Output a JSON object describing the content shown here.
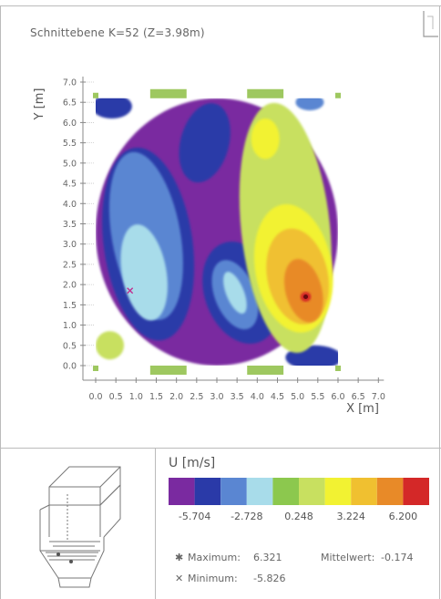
{
  "header": {
    "title": "Schnittebene K=52 (Z=3.98m)"
  },
  "chart_data": {
    "type": "heatmap",
    "ylabel": "Y [m]",
    "xlabel": "X [m]",
    "xlim": [
      0,
      7.0
    ],
    "ylim": [
      0,
      7.0
    ],
    "x_ticks": [
      "0.0",
      "0.5",
      "1.0",
      "1.5",
      "2.0",
      "2.5",
      "3.0",
      "3.5",
      "4.0",
      "4.5",
      "5.0",
      "5.5",
      "6.0",
      "6.5",
      "7.0"
    ],
    "y_ticks": [
      "0.0",
      "0.5",
      "1.0",
      "1.5",
      "2.0",
      "2.5",
      "3.0",
      "3.5",
      "4.0",
      "4.5",
      "5.0",
      "5.5",
      "6.0",
      "6.5",
      "7.0"
    ],
    "x_tick_values": [
      0,
      0.5,
      1.0,
      1.5,
      2.0,
      2.5,
      3.0,
      3.5,
      4.0,
      4.5,
      5.0,
      5.5,
      6.0,
      6.5,
      7.0
    ],
    "y_tick_values": [
      0,
      0.5,
      1.0,
      1.5,
      2.0,
      2.5,
      3.0,
      3.5,
      4.0,
      4.5,
      5.0,
      5.5,
      6.0,
      6.5,
      7.0
    ],
    "domain_x": [
      0,
      6.0
    ],
    "domain_y": [
      0,
      6.6
    ],
    "field": [
      {
        "level": 0,
        "blobs": [
          {
            "cx": 3.0,
            "cy": 3.3,
            "rx": 3.0,
            "ry": 3.3,
            "rot": 0
          }
        ]
      },
      {
        "level": 1,
        "blobs": [
          {
            "cx": 1.3,
            "cy": 3.0,
            "rx": 1.1,
            "ry": 2.4,
            "rot": -8
          },
          {
            "cx": 2.7,
            "cy": 5.5,
            "rx": 0.6,
            "ry": 1.0,
            "rot": 15
          },
          {
            "cx": 0.4,
            "cy": 6.4,
            "rx": 0.5,
            "ry": 0.3,
            "rot": 0
          },
          {
            "cx": 3.6,
            "cy": 1.8,
            "rx": 0.9,
            "ry": 1.3,
            "rot": -20
          },
          {
            "cx": 5.4,
            "cy": 0.2,
            "rx": 0.7,
            "ry": 0.3,
            "rot": 0
          }
        ]
      },
      {
        "level": 2,
        "blobs": [
          {
            "cx": 1.25,
            "cy": 3.2,
            "rx": 0.85,
            "ry": 2.1,
            "rot": -10
          },
          {
            "cx": 3.45,
            "cy": 1.75,
            "rx": 0.5,
            "ry": 0.9,
            "rot": -22
          },
          {
            "cx": 5.3,
            "cy": 6.5,
            "rx": 0.35,
            "ry": 0.2,
            "rot": 0
          }
        ]
      },
      {
        "level": 3,
        "blobs": [
          {
            "cx": 1.2,
            "cy": 2.3,
            "rx": 0.55,
            "ry": 1.2,
            "rot": -10
          },
          {
            "cx": 3.45,
            "cy": 1.8,
            "rx": 0.22,
            "ry": 0.55,
            "rot": -22
          }
        ]
      },
      {
        "level": 5,
        "blobs": [
          {
            "cx": 4.7,
            "cy": 3.4,
            "rx": 1.1,
            "ry": 3.1,
            "rot": -6
          },
          {
            "cx": 0.35,
            "cy": 0.5,
            "rx": 0.35,
            "ry": 0.35,
            "rot": 0
          }
        ]
      },
      {
        "level": 6,
        "blobs": [
          {
            "cx": 4.9,
            "cy": 2.4,
            "rx": 0.95,
            "ry": 1.6,
            "rot": -10
          },
          {
            "cx": 4.2,
            "cy": 5.6,
            "rx": 0.35,
            "ry": 0.5,
            "rot": 0
          }
        ]
      },
      {
        "level": 7,
        "blobs": [
          {
            "cx": 5.0,
            "cy": 2.2,
            "rx": 0.75,
            "ry": 1.2,
            "rot": -12
          }
        ]
      },
      {
        "level": 8,
        "blobs": [
          {
            "cx": 5.15,
            "cy": 1.85,
            "rx": 0.45,
            "ry": 0.8,
            "rot": -15
          }
        ]
      },
      {
        "level": 9,
        "blobs": [
          {
            "cx": 5.2,
            "cy": 1.7,
            "rx": 0.13,
            "ry": 0.12,
            "rot": 0
          }
        ]
      }
    ],
    "markers": [
      {
        "type": "maximum",
        "x": 5.2,
        "y": 1.7,
        "symbol": "*"
      },
      {
        "type": "minimum",
        "x": 0.85,
        "y": 1.85,
        "symbol": "x"
      }
    ],
    "legend": {
      "title": "U [m/s]",
      "colors": [
        "#7a2aa0",
        "#2a3aa8",
        "#5a86d2",
        "#a8dcea",
        "#8cc84e",
        "#c8e060",
        "#f2f232",
        "#f0c030",
        "#e88a28",
        "#d42828"
      ],
      "tick_labels": [
        "-5.704",
        "-2.728",
        "0.248",
        "3.224",
        "6.200"
      ]
    },
    "stats": {
      "maximum_label": "Maximum:",
      "maximum_value": "6.321",
      "minimum_label": "Minimum:",
      "minimum_value": "-5.826",
      "mean_label": "Mittelwert:",
      "mean_value": "-0.174"
    }
  },
  "colors": {
    "axis": "#888888",
    "frame": "#bbbbbb",
    "plate": "#9ec860"
  }
}
